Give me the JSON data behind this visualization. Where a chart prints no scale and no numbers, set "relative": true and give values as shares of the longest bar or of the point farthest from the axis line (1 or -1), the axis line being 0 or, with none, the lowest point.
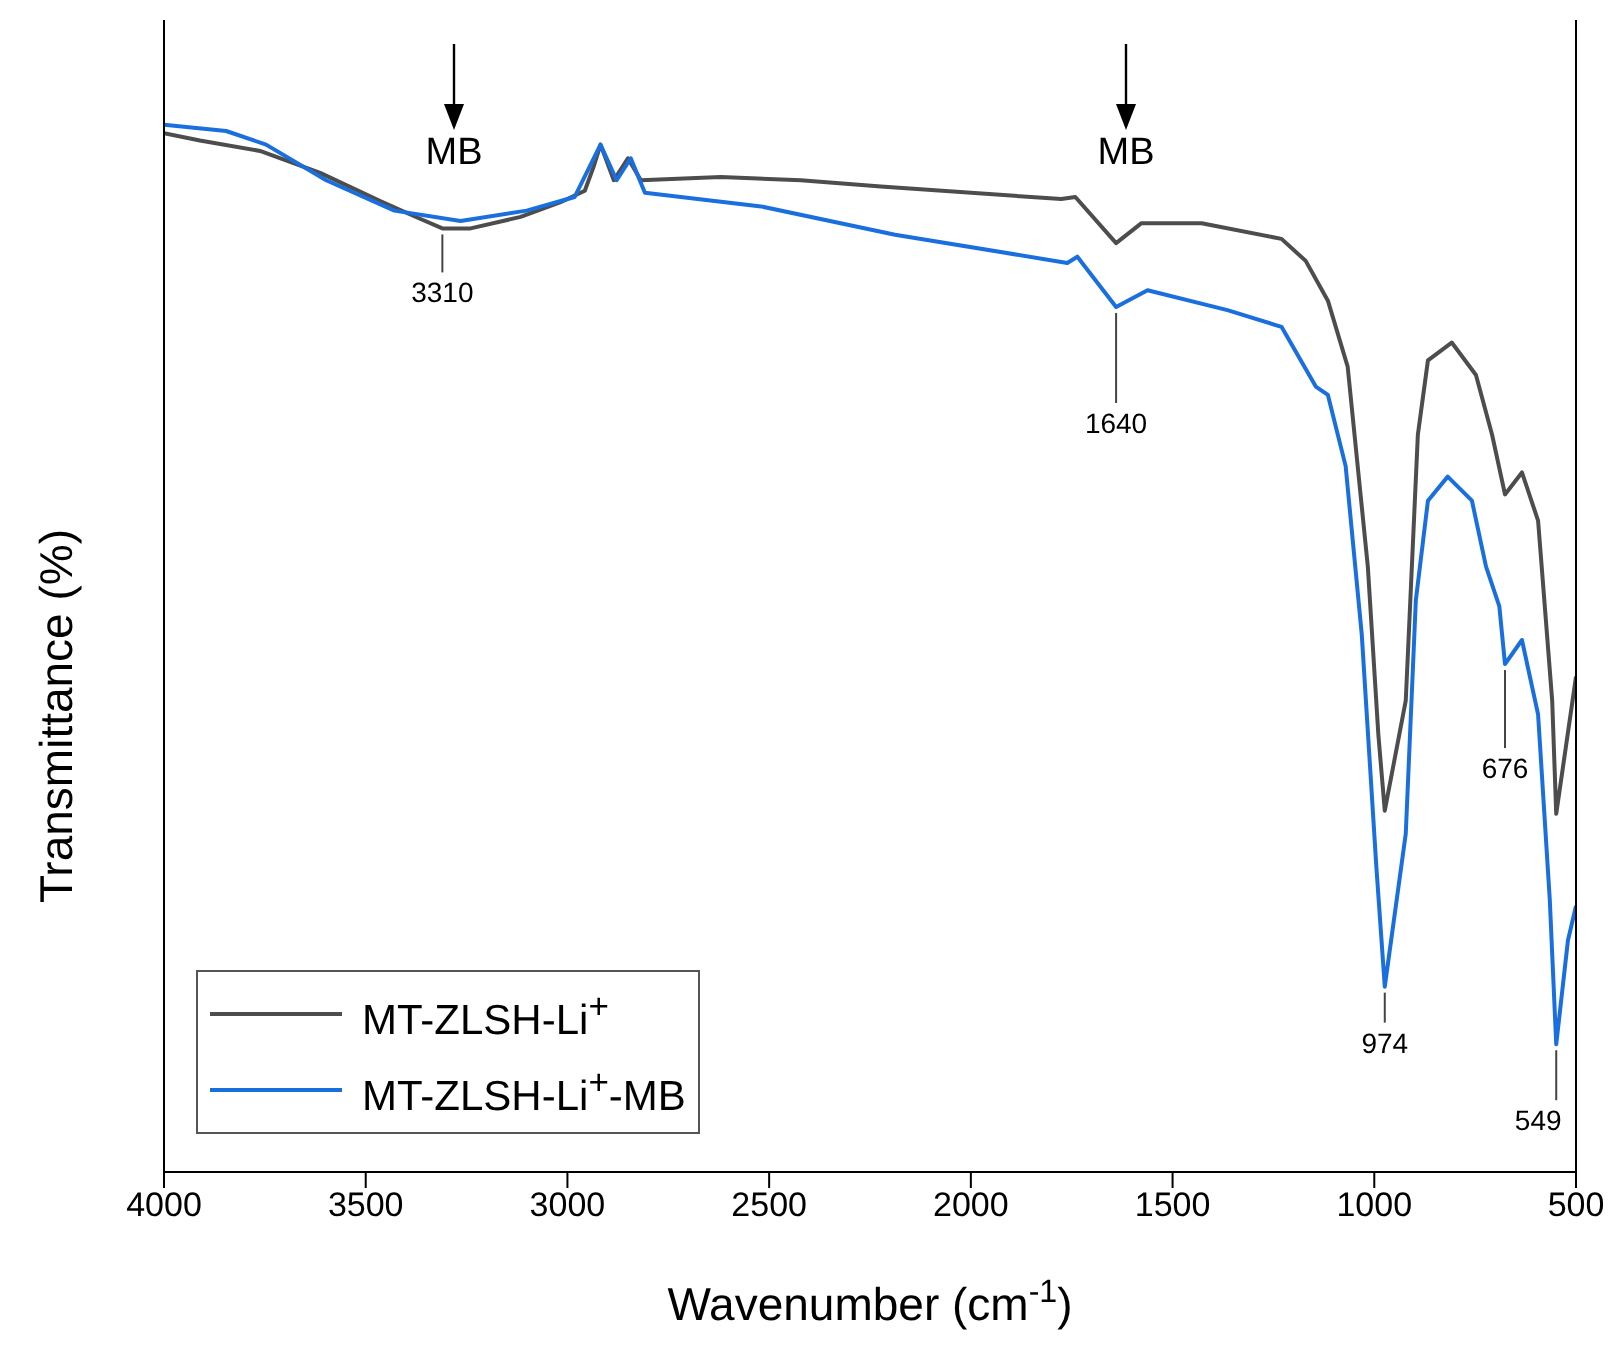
{
  "chart_data": {
    "type": "line",
    "relative": true,
    "xlabel": "Wavenumber (cm$^{-1}$)",
    "ylabel": "Transmittance (%)",
    "xlim": [
      4000,
      500
    ],
    "xticks": [
      4000,
      3500,
      3000,
      2500,
      2000,
      1500,
      1000,
      500
    ],
    "legend": "bottom left",
    "grid": false,
    "marker": "none",
    "line_style": "solid",
    "series": [
      {
        "name": "MT-ZLSH-Li$^{+}$",
        "color": "#4d4d4d",
        "x": [
          4000,
          3911,
          3762,
          3613,
          3464,
          3364,
          3310,
          3240,
          3116,
          3017,
          2957,
          2935,
          2918,
          2885,
          2850,
          2818,
          2620,
          2421,
          2223,
          1776,
          1741,
          1640,
          1577,
          1428,
          1230,
          1170,
          1115,
          1066,
          1016,
          990,
          974,
          922,
          892,
          867,
          808,
          748,
          708,
          676,
          634,
          594,
          559,
          549,
          500
        ],
        "values": [
          0.992,
          0.985,
          0.975,
          0.954,
          0.927,
          0.91,
          0.901,
          0.901,
          0.912,
          0.926,
          0.937,
          0.96,
          0.981,
          0.947,
          0.968,
          0.947,
          0.95,
          0.947,
          0.941,
          0.929,
          0.931,
          0.887,
          0.906,
          0.906,
          0.891,
          0.87,
          0.832,
          0.769,
          0.578,
          0.418,
          0.345,
          0.45,
          0.704,
          0.775,
          0.792,
          0.761,
          0.704,
          0.647,
          0.668,
          0.622,
          0.45,
          0.342,
          0.473
        ]
      },
      {
        "name": "MT-ZLSH-Li$^{+}$-MB",
        "color": "#1a6fdf",
        "x": [
          4000,
          3846,
          3747,
          3598,
          3429,
          3265,
          3101,
          2982,
          2918,
          2878,
          2843,
          2808,
          2520,
          2188,
          1761,
          1736,
          1640,
          1562,
          1364,
          1230,
          1145,
          1115,
          1071,
          1031,
          995,
          974,
          922,
          897,
          867,
          818,
          758,
          723,
          690,
          676,
          634,
          594,
          565,
          549,
          520,
          500
        ],
        "values": [
          1.0,
          0.994,
          0.981,
          0.947,
          0.918,
          0.908,
          0.918,
          0.931,
          0.981,
          0.947,
          0.968,
          0.935,
          0.922,
          0.895,
          0.868,
          0.874,
          0.826,
          0.842,
          0.823,
          0.807,
          0.75,
          0.742,
          0.674,
          0.513,
          0.292,
          0.177,
          0.323,
          0.546,
          0.641,
          0.664,
          0.641,
          0.578,
          0.54,
          0.485,
          0.508,
          0.437,
          0.26,
          0.122,
          0.221,
          0.254
        ]
      }
    ],
    "annotations": [
      "MB",
      "MB",
      {
        "text": "3310",
        "x": 3310,
        "y": 0.901
      },
      {
        "text": "1640",
        "x": 1640,
        "y": 0.826
      },
      {
        "text": "974",
        "x": 974,
        "y": 0.177
      },
      {
        "text": "676",
        "x": 676,
        "y": 0.485
      },
      {
        "text": "549",
        "x": 549,
        "y": 0.122
      }
    ]
  }
}
